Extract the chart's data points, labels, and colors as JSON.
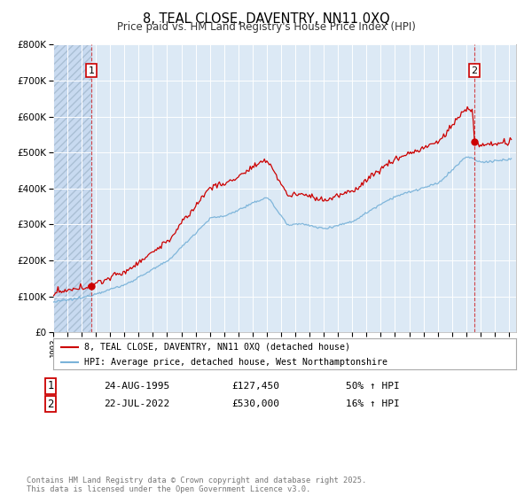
{
  "title": "8, TEAL CLOSE, DAVENTRY, NN11 0XQ",
  "subtitle": "Price paid vs. HM Land Registry's House Price Index (HPI)",
  "legend_line1": "8, TEAL CLOSE, DAVENTRY, NN11 0XQ (detached house)",
  "legend_line2": "HPI: Average price, detached house, West Northamptonshire",
  "footer": "Contains HM Land Registry data © Crown copyright and database right 2025.\nThis data is licensed under the Open Government Licence v3.0.",
  "transaction1_date": "24-AUG-1995",
  "transaction1_price": "£127,450",
  "transaction1_hpi": "50% ↑ HPI",
  "transaction2_date": "22-JUL-2022",
  "transaction2_price": "£530,000",
  "transaction2_hpi": "16% ↑ HPI",
  "sale1_year": 1995.648,
  "sale1_price": 127450,
  "sale2_year": 2022.553,
  "sale2_price": 530000,
  "hpi_color": "#7ab3d9",
  "property_color": "#cc0000",
  "plot_bg_color": "#dce9f5",
  "grid_color": "#ffffff",
  "ylim_max": 800000,
  "ylim_min": 0,
  "xlim_min": 1993.0,
  "xlim_max": 2025.5
}
